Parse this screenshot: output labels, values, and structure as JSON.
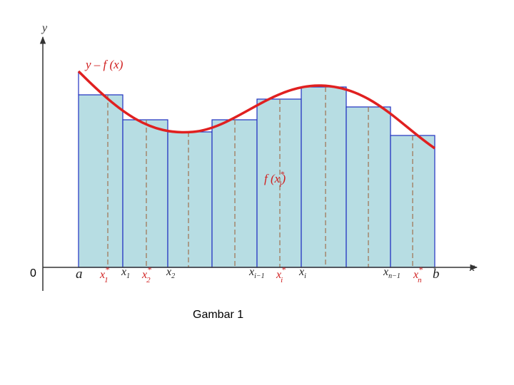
{
  "axis": {
    "y": "y",
    "x": "x",
    "origin": "0"
  },
  "curve_label": "y – f (x)",
  "sample_label": {
    "base": "f (x",
    "sub": "i",
    "sup": "*",
    "close": ")"
  },
  "points": [
    {
      "base": "a"
    },
    {
      "base": "x",
      "sub": "1",
      "sup": "*"
    },
    {
      "base": "x",
      "sub": "1"
    },
    {
      "base": "x",
      "sub": "2",
      "sup": "*"
    },
    {
      "base": "x",
      "sub": "2"
    },
    {
      "base": "x",
      "sub": "i−1"
    },
    {
      "base": "x",
      "sub": "i",
      "sup": "*"
    },
    {
      "base": "x",
      "sub": "i"
    },
    {
      "base": "x",
      "sub": "n−1"
    },
    {
      "base": "x",
      "sub": "n",
      "sup": "*"
    },
    {
      "base": "b"
    }
  ],
  "caption": "Gambar 1"
}
